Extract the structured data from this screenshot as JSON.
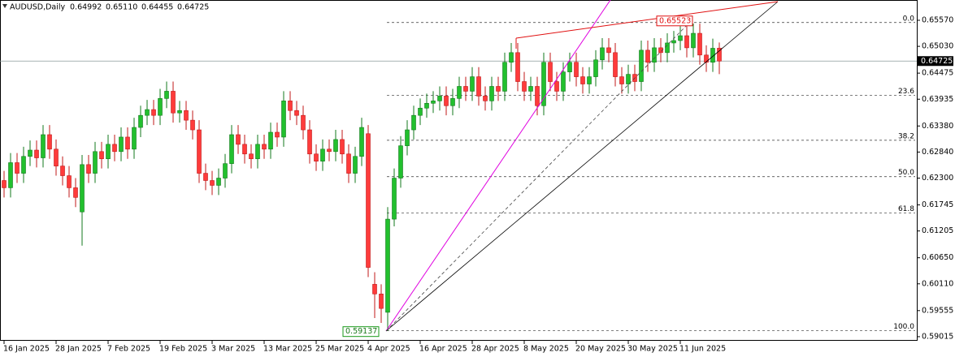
{
  "chart_data": {
    "type": "candlestick",
    "title": "AUDUSD,Daily",
    "header_values": [
      "0.64992",
      "0.65110",
      "0.64455",
      "0.64725"
    ],
    "categories": [
      "16 Jan 2025",
      null,
      null,
      null,
      null,
      null,
      null,
      null,
      "28 Jan 2025",
      null,
      null,
      null,
      null,
      null,
      null,
      null,
      "7 Feb 2025",
      null,
      null,
      null,
      null,
      null,
      null,
      null,
      "19 Feb 2025",
      null,
      null,
      null,
      null,
      null,
      null,
      null,
      "3 Mar 2025",
      null,
      null,
      null,
      null,
      null,
      null,
      null,
      "13 Mar 2025",
      null,
      null,
      null,
      null,
      null,
      null,
      null,
      "25 Mar 2025",
      null,
      null,
      null,
      null,
      null,
      null,
      null,
      "4 Apr 2025",
      null,
      null,
      null,
      null,
      null,
      null,
      null,
      "16 Apr 2025",
      null,
      null,
      null,
      null,
      null,
      null,
      null,
      "28 Apr 2025",
      null,
      null,
      null,
      null,
      null,
      null,
      null,
      "8 May 2025",
      null,
      null,
      null,
      null,
      null,
      null,
      null,
      "20 May 2025",
      null,
      null,
      null,
      null,
      null,
      null,
      null,
      "30 May 2025",
      null,
      null,
      null,
      null,
      null,
      null,
      null,
      "11 Jun 2025",
      null,
      null,
      null,
      null,
      null,
      null
    ],
    "open": [
      0.6225,
      0.621,
      0.6262,
      0.624,
      0.6275,
      0.6288,
      0.6272,
      0.632,
      0.629,
      0.6255,
      0.6235,
      0.621,
      0.616,
      0.6258,
      0.624,
      0.6285,
      0.627,
      0.63,
      0.6285,
      0.6315,
      0.629,
      0.6335,
      0.636,
      0.6372,
      0.636,
      0.6395,
      0.641,
      0.6365,
      0.637,
      0.635,
      0.633,
      0.624,
      0.6225,
      0.6215,
      0.623,
      0.626,
      0.632,
      0.63,
      0.628,
      0.627,
      0.63,
      0.629,
      0.6325,
      0.6315,
      0.639,
      0.637,
      0.636,
      0.633,
      0.628,
      0.6265,
      0.629,
      0.6285,
      0.631,
      0.628,
      0.624,
      0.6275,
      0.6322,
      0.601,
      0.599,
      0.5952,
      0.6145,
      0.623,
      0.6297,
      0.633,
      0.636,
      0.6375,
      0.6385,
      0.639,
      0.64,
      0.638,
      0.6395,
      0.642,
      0.641,
      0.644,
      0.64,
      0.639,
      0.642,
      0.641,
      0.647,
      0.649,
      0.643,
      0.641,
      0.642,
      0.638,
      0.647,
      0.643,
      0.641,
      0.645,
      0.647,
      0.644,
      0.6425,
      0.644,
      0.6475,
      0.65,
      0.649,
      0.644,
      0.6425,
      0.6445,
      0.643,
      0.6495,
      0.647,
      0.65,
      0.649,
      0.651,
      0.6515,
      0.6525,
      0.65,
      0.653,
      0.6485,
      0.647,
      0.64992
    ],
    "high": [
      0.6245,
      0.6282,
      0.6282,
      0.6295,
      0.6308,
      0.6308,
      0.634,
      0.634,
      0.631,
      0.6275,
      0.6255,
      0.623,
      0.6278,
      0.6278,
      0.6305,
      0.6305,
      0.632,
      0.632,
      0.6335,
      0.6335,
      0.6355,
      0.638,
      0.6392,
      0.6392,
      0.6415,
      0.643,
      0.643,
      0.639,
      0.639,
      0.637,
      0.635,
      0.626,
      0.6245,
      0.625,
      0.628,
      0.634,
      0.634,
      0.632,
      0.63,
      0.632,
      0.632,
      0.6345,
      0.6345,
      0.641,
      0.641,
      0.639,
      0.638,
      0.635,
      0.63,
      0.631,
      0.631,
      0.633,
      0.633,
      0.63,
      0.6295,
      0.6355,
      0.634,
      0.6035,
      0.601,
      0.617,
      0.625,
      0.6317,
      0.635,
      0.638,
      0.6395,
      0.6405,
      0.641,
      0.642,
      0.642,
      0.6415,
      0.644,
      0.644,
      0.646,
      0.646,
      0.642,
      0.644,
      0.644,
      0.649,
      0.651,
      0.651,
      0.645,
      0.644,
      0.644,
      0.649,
      0.649,
      0.645,
      0.647,
      0.649,
      0.649,
      0.646,
      0.646,
      0.6495,
      0.652,
      0.652,
      0.651,
      0.646,
      0.6465,
      0.6465,
      0.6515,
      0.6515,
      0.652,
      0.652,
      0.653,
      0.6535,
      0.6545,
      0.6545,
      0.655,
      0.655,
      0.6505,
      0.6519,
      0.6511
    ],
    "low": [
      0.619,
      0.619,
      0.622,
      0.622,
      0.6255,
      0.6252,
      0.6252,
      0.627,
      0.6235,
      0.6215,
      0.619,
      0.617,
      0.609,
      0.622,
      0.622,
      0.625,
      0.625,
      0.6265,
      0.6265,
      0.627,
      0.627,
      0.6315,
      0.634,
      0.634,
      0.634,
      0.6375,
      0.6345,
      0.6345,
      0.633,
      0.631,
      0.622,
      0.6205,
      0.6195,
      0.6195,
      0.621,
      0.624,
      0.628,
      0.626,
      0.625,
      0.625,
      0.627,
      0.627,
      0.6295,
      0.6295,
      0.635,
      0.634,
      0.631,
      0.626,
      0.6245,
      0.6245,
      0.6265,
      0.6265,
      0.626,
      0.622,
      0.622,
      0.6255,
      0.6025,
      0.594,
      0.593,
      0.59137,
      0.613,
      0.621,
      0.6277,
      0.631,
      0.634,
      0.6355,
      0.6365,
      0.637,
      0.636,
      0.636,
      0.6375,
      0.639,
      0.639,
      0.638,
      0.637,
      0.637,
      0.639,
      0.639,
      0.645,
      0.641,
      0.639,
      0.639,
      0.636,
      0.636,
      0.641,
      0.639,
      0.639,
      0.643,
      0.642,
      0.6405,
      0.6405,
      0.642,
      0.6455,
      0.647,
      0.642,
      0.6405,
      0.6405,
      0.641,
      0.641,
      0.645,
      0.645,
      0.647,
      0.647,
      0.649,
      0.6495,
      0.648,
      0.648,
      0.6465,
      0.645,
      0.645,
      0.64455
    ],
    "close": [
      0.621,
      0.6262,
      0.624,
      0.6275,
      0.6288,
      0.6272,
      0.632,
      0.629,
      0.6255,
      0.6235,
      0.621,
      0.619,
      0.6258,
      0.624,
      0.6285,
      0.627,
      0.63,
      0.6285,
      0.6315,
      0.629,
      0.6335,
      0.636,
      0.6372,
      0.636,
      0.6395,
      0.641,
      0.6365,
      0.637,
      0.635,
      0.633,
      0.624,
      0.6225,
      0.6215,
      0.623,
      0.626,
      0.632,
      0.63,
      0.628,
      0.627,
      0.63,
      0.629,
      0.6325,
      0.6315,
      0.639,
      0.637,
      0.636,
      0.633,
      0.628,
      0.6265,
      0.629,
      0.6285,
      0.631,
      0.628,
      0.624,
      0.6275,
      0.6335,
      0.6045,
      0.599,
      0.596,
      0.6145,
      0.623,
      0.6297,
      0.633,
      0.636,
      0.6375,
      0.6385,
      0.639,
      0.64,
      0.638,
      0.6395,
      0.642,
      0.641,
      0.644,
      0.64,
      0.639,
      0.642,
      0.641,
      0.647,
      0.649,
      0.643,
      0.641,
      0.642,
      0.638,
      0.647,
      0.643,
      0.641,
      0.645,
      0.647,
      0.644,
      0.6425,
      0.644,
      0.6475,
      0.65,
      0.649,
      0.644,
      0.6425,
      0.6445,
      0.643,
      0.6495,
      0.647,
      0.65,
      0.649,
      0.651,
      0.6515,
      0.6525,
      0.65,
      0.653,
      0.6485,
      0.647,
      0.6499,
      0.64725
    ],
    "up_color": "#22c02e",
    "down_color": "#ff3b3b",
    "ylim": [
      0.5893,
      0.6599
    ],
    "yticks": [
      {
        "value": 0.6557,
        "label": "0.65570"
      },
      {
        "value": 0.6503,
        "label": "0.65030"
      },
      {
        "value": 0.64475,
        "label": "0.64475"
      },
      {
        "value": 0.63935,
        "label": "0.63935"
      },
      {
        "value": 0.6338,
        "label": "0.63380"
      },
      {
        "value": 0.6284,
        "label": "0.62840"
      },
      {
        "value": 0.623,
        "label": "0.62300"
      },
      {
        "value": 0.61745,
        "label": "0.61745"
      },
      {
        "value": 0.61205,
        "label": "0.61205"
      },
      {
        "value": 0.6065,
        "label": "0.60650"
      },
      {
        "value": 0.6011,
        "label": "0.60110"
      },
      {
        "value": 0.59555,
        "label": "0.59555"
      },
      {
        "value": 0.59015,
        "label": "0.59015"
      }
    ],
    "last_price": {
      "value": 0.64725,
      "label": "0.64725"
    },
    "swing_high": {
      "value": 0.65523,
      "label": "0.65523"
    },
    "swing_low": {
      "value": 0.59137,
      "label": "0.59137"
    },
    "fib_levels": [
      {
        "value": 0,
        "label": "0.0"
      },
      23.6,
      38.2,
      {
        "value": 50,
        "label": "50.0"
      },
      61.8,
      {
        "value": 100,
        "label": "100.0"
      }
    ]
  }
}
